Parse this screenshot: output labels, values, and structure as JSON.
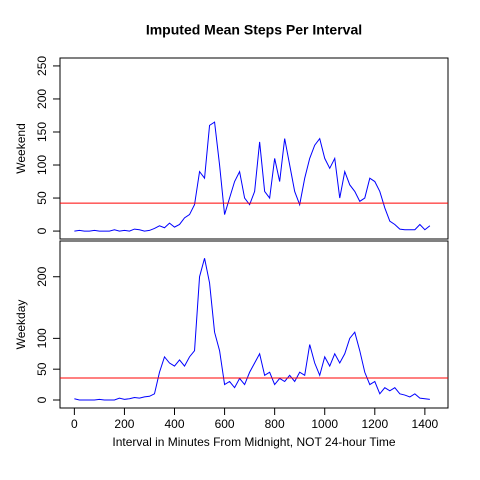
{
  "chart_data": [
    {
      "type": "line",
      "title": "Imputed Mean Steps Per Interval",
      "ylabel": "Weekend",
      "color": "#0000ff",
      "x": [
        0,
        20,
        40,
        60,
        80,
        100,
        120,
        140,
        160,
        180,
        200,
        220,
        240,
        260,
        280,
        300,
        320,
        340,
        360,
        380,
        400,
        420,
        440,
        460,
        480,
        500,
        520,
        540,
        560,
        580,
        600,
        620,
        640,
        660,
        680,
        700,
        720,
        740,
        760,
        780,
        800,
        820,
        840,
        860,
        880,
        900,
        920,
        940,
        960,
        980,
        1000,
        1020,
        1040,
        1060,
        1080,
        1100,
        1120,
        1140,
        1160,
        1180,
        1200,
        1220,
        1240,
        1260,
        1280,
        1300,
        1320,
        1340,
        1360,
        1380,
        1400,
        1420
      ],
      "values": [
        0,
        1,
        0,
        0,
        1,
        0,
        0,
        0,
        2,
        0,
        1,
        0,
        3,
        2,
        0,
        1,
        4,
        8,
        5,
        12,
        6,
        10,
        20,
        25,
        40,
        90,
        80,
        160,
        165,
        100,
        25,
        50,
        75,
        90,
        50,
        40,
        60,
        135,
        60,
        50,
        110,
        75,
        140,
        100,
        60,
        40,
        80,
        110,
        130,
        140,
        110,
        95,
        110,
        50,
        90,
        70,
        60,
        45,
        50,
        80,
        75,
        60,
        35,
        15,
        10,
        3,
        2,
        2,
        2,
        10,
        2,
        8
      ],
      "hline": {
        "value": 42.4,
        "color": "#ff0000"
      },
      "xlim": [
        -57.4,
        1492.4
      ],
      "ylim": [
        -12,
        262
      ],
      "yticks": [
        0,
        50,
        100,
        150,
        200,
        250
      ]
    },
    {
      "type": "line",
      "xlabel": "Interval in Minutes From Midnight, NOT 24-hour Time",
      "ylabel": "Weekday",
      "color": "#0000ff",
      "x": [
        0,
        20,
        40,
        60,
        80,
        100,
        120,
        140,
        160,
        180,
        200,
        220,
        240,
        260,
        280,
        300,
        320,
        340,
        360,
        380,
        400,
        420,
        440,
        460,
        480,
        500,
        520,
        540,
        560,
        580,
        600,
        620,
        640,
        660,
        680,
        700,
        720,
        740,
        760,
        780,
        800,
        820,
        840,
        860,
        880,
        900,
        920,
        940,
        960,
        980,
        1000,
        1020,
        1040,
        1060,
        1080,
        1100,
        1120,
        1140,
        1160,
        1180,
        1200,
        1220,
        1240,
        1260,
        1280,
        1300,
        1320,
        1340,
        1360,
        1380,
        1400,
        1420
      ],
      "values": [
        2,
        0,
        0,
        0,
        0,
        1,
        0,
        0,
        0,
        3,
        1,
        2,
        4,
        3,
        5,
        6,
        10,
        45,
        70,
        60,
        55,
        65,
        55,
        70,
        80,
        200,
        230,
        190,
        110,
        80,
        25,
        30,
        20,
        35,
        25,
        45,
        60,
        75,
        40,
        45,
        25,
        35,
        30,
        40,
        30,
        45,
        40,
        90,
        60,
        40,
        70,
        55,
        75,
        60,
        75,
        100,
        110,
        80,
        45,
        25,
        30,
        10,
        20,
        15,
        20,
        10,
        8,
        5,
        10,
        3,
        2,
        1
      ],
      "hline": {
        "value": 35.6,
        "color": "#ff0000"
      },
      "xlim": [
        -57.4,
        1492.4
      ],
      "ylim": [
        -13,
        258
      ],
      "yticks": [
        0,
        50,
        100,
        200
      ],
      "xticks": [
        0,
        200,
        400,
        600,
        800,
        1000,
        1200,
        1400
      ]
    }
  ]
}
